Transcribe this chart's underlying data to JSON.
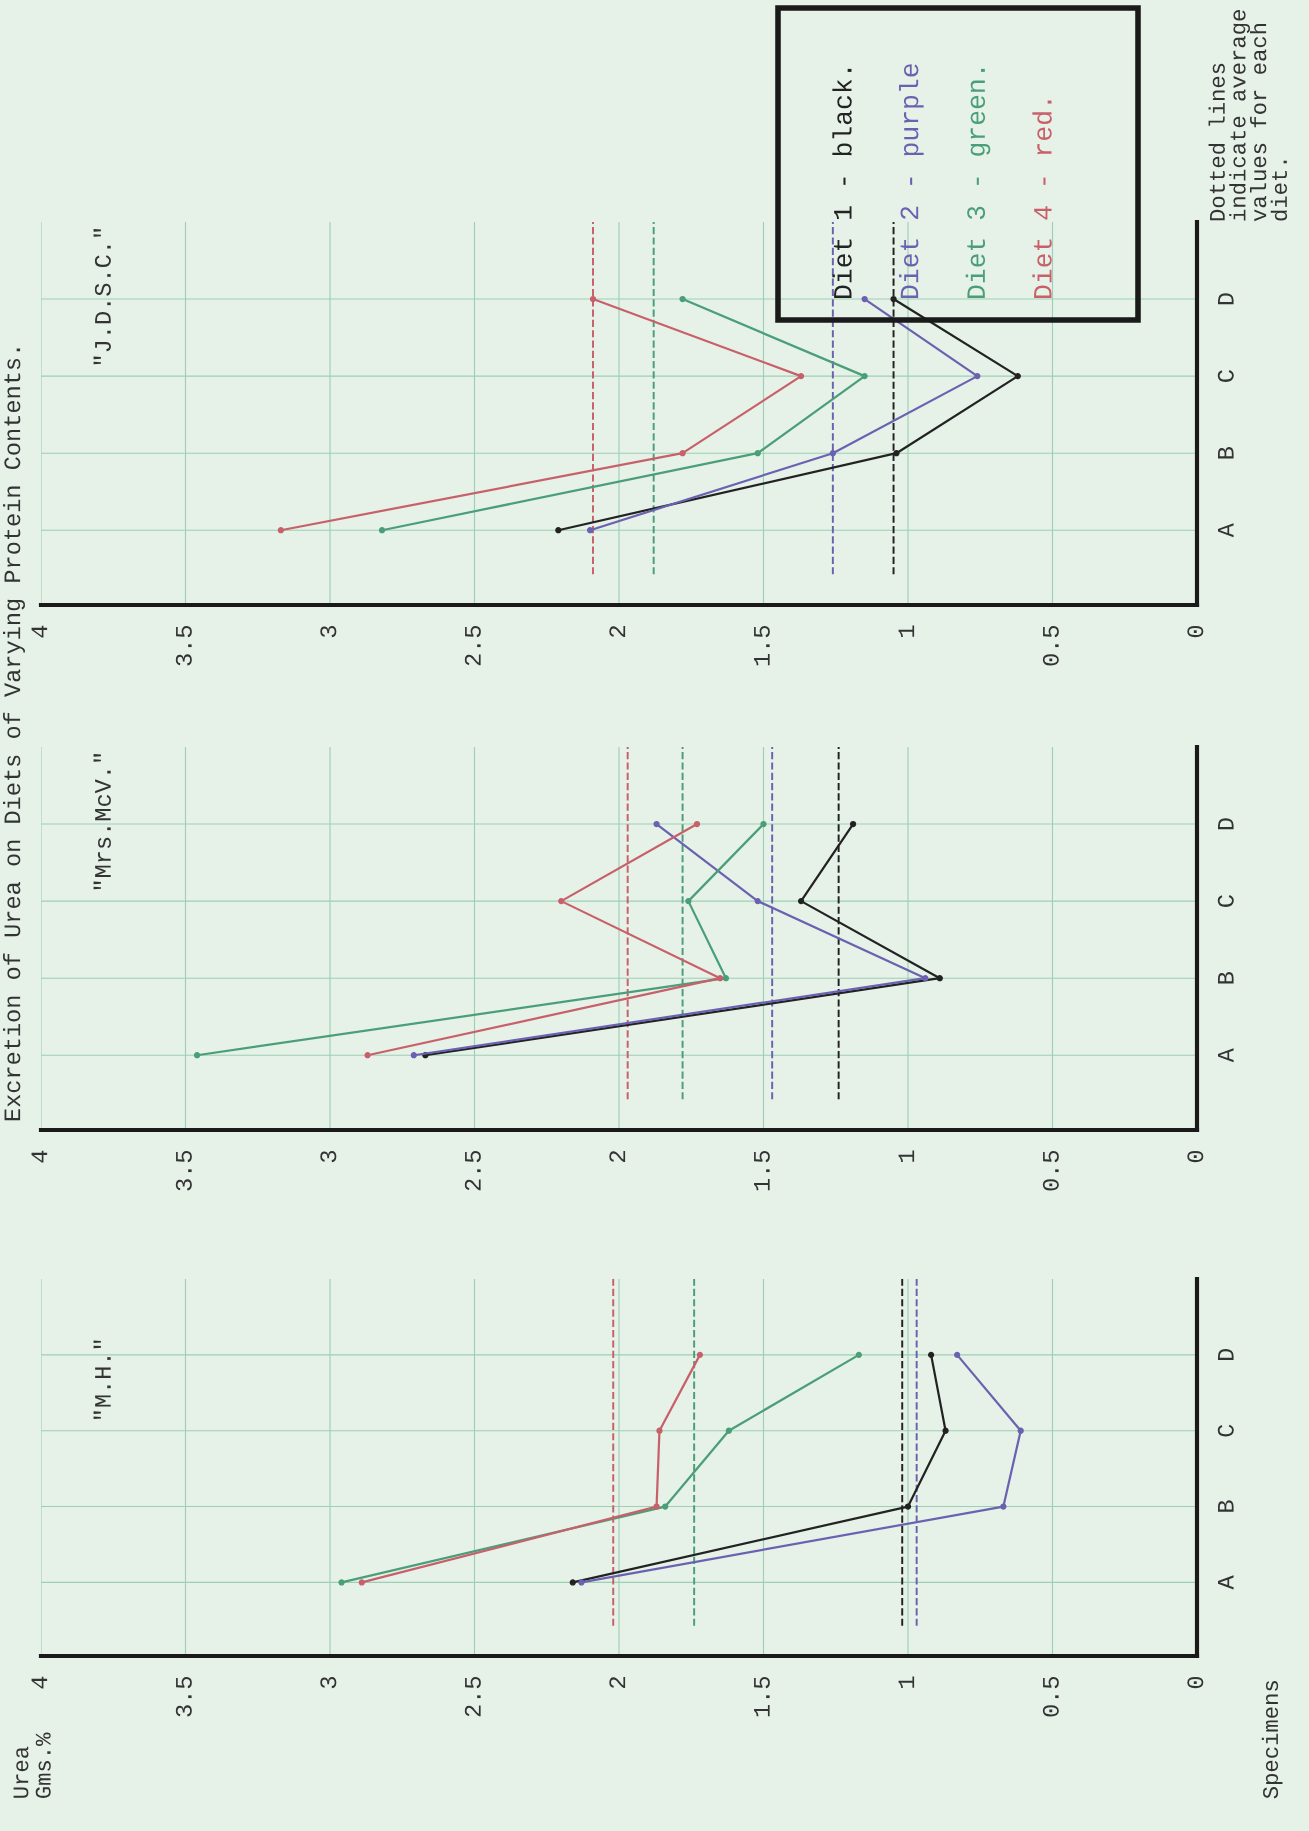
{
  "chart_data": [
    {
      "type": "line",
      "title": "\"M.H.\"",
      "ylabel": "Specimens",
      "orientation": "horizontal",
      "annotations": [
        "Excretion of Urea on Diets of Varying Protein Contents.",
        "Urea\nGms.%"
      ],
      "categories": [
        "D",
        "C",
        "B",
        "A"
      ],
      "xlim": [
        4,
        0
      ],
      "xticks": [
        0,
        0.5,
        1,
        1.5,
        2,
        2.5,
        3,
        3.5,
        4
      ],
      "grid": true,
      "marker": "circle",
      "line_style": "solid",
      "series": [
        {
          "color": "#222222",
          "values": [
            0.92,
            0.87,
            1.0,
            2.16
          ]
        },
        {
          "color": "#6a62b0",
          "values": [
            0.83,
            0.61,
            0.67,
            2.13
          ]
        },
        {
          "color": "#4a9e78",
          "values": [
            1.17,
            1.62,
            1.84,
            2.96
          ]
        },
        {
          "color": "#c8606a",
          "values": [
            1.72,
            1.86,
            1.87,
            2.89
          ]
        }
      ],
      "ref_lines": [
        {
          "axis": "x",
          "value": 1.02,
          "color": "#222222",
          "line_style": "dashed"
        },
        {
          "axis": "x",
          "value": 0.97,
          "color": "#6a62b0",
          "line_style": "dashed"
        },
        {
          "axis": "x",
          "value": 1.74,
          "color": "#4a9e78",
          "line_style": "dashed"
        },
        {
          "axis": "x",
          "value": 2.02,
          "color": "#c8606a",
          "line_style": "dashed"
        }
      ]
    },
    {
      "type": "line",
      "title": "\"Mrs.McV.\"",
      "orientation": "horizontal",
      "categories": [
        "D",
        "C",
        "B",
        "A"
      ],
      "xlim": [
        4,
        0
      ],
      "xticks": [
        0,
        0.5,
        1,
        1.5,
        2,
        2.5,
        3,
        3.5,
        4
      ],
      "grid": true,
      "marker": "circle",
      "line_style": "solid",
      "series": [
        {
          "color": "#222222",
          "values": [
            1.19,
            1.37,
            0.89,
            2.67
          ]
        },
        {
          "color": "#6a62b0",
          "values": [
            1.87,
            1.52,
            0.94,
            2.71
          ]
        },
        {
          "color": "#4a9e78",
          "values": [
            1.5,
            1.76,
            1.63,
            3.46
          ]
        },
        {
          "color": "#c8606a",
          "values": [
            1.73,
            2.2,
            1.65,
            2.87
          ]
        }
      ],
      "ref_lines": [
        {
          "axis": "x",
          "value": 1.24,
          "color": "#222222",
          "line_style": "dashed"
        },
        {
          "axis": "x",
          "value": 1.47,
          "color": "#6a62b0",
          "line_style": "dashed"
        },
        {
          "axis": "x",
          "value": 1.78,
          "color": "#4a9e78",
          "line_style": "dashed"
        },
        {
          "axis": "x",
          "value": 1.97,
          "color": "#c8606a",
          "line_style": "dashed"
        }
      ]
    },
    {
      "type": "line",
      "title": "\"J.D.S.C.\"",
      "orientation": "horizontal",
      "annotations": [
        "Dotted lines\nindicate average\nvalues for each\ndiet."
      ],
      "categories": [
        "D",
        "C",
        "B",
        "A"
      ],
      "xlim": [
        4,
        0
      ],
      "xticks": [
        0,
        0.5,
        1,
        1.5,
        2,
        2.5,
        3,
        3.5,
        4
      ],
      "grid": true,
      "marker": "circle",
      "line_style": "solid",
      "legend": "top right",
      "series": [
        {
          "name": "Diet 1 - black.",
          "color": "#222222",
          "values": [
            1.05,
            0.62,
            1.04,
            2.21
          ]
        },
        {
          "name": "Diet 2 - purple",
          "color": "#6a62b0",
          "values": [
            1.15,
            0.76,
            1.26,
            2.1
          ]
        },
        {
          "name": "Diet 3 - green.",
          "color": "#4a9e78",
          "values": [
            1.78,
            1.15,
            1.52,
            2.82
          ]
        },
        {
          "name": "Diet 4 - red.",
          "color": "#c8606a",
          "values": [
            2.09,
            1.37,
            1.78,
            3.17
          ]
        }
      ],
      "ref_lines": [
        {
          "axis": "x",
          "value": 1.05,
          "color": "#222222",
          "line_style": "dashed"
        },
        {
          "axis": "x",
          "value": 1.26,
          "color": "#6a62b0",
          "line_style": "dashed"
        },
        {
          "axis": "x",
          "value": 1.88,
          "color": "#4a9e78",
          "line_style": "dashed"
        },
        {
          "axis": "x",
          "value": 2.09,
          "color": "#c8606a",
          "line_style": "dashed"
        }
      ]
    }
  ]
}
